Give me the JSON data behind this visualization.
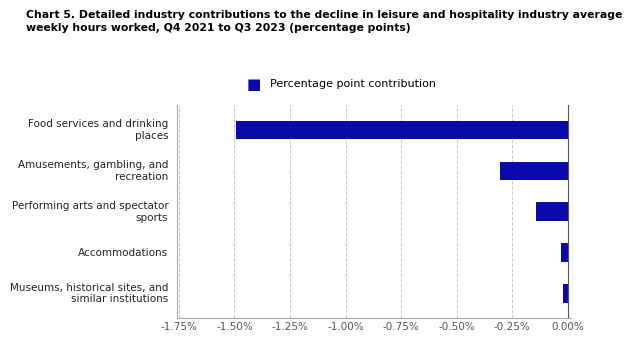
{
  "title": "Chart 5. Detailed industry contributions to the decline in leisure and hospitality industry average\nweekly hours worked, Q4 2021 to Q3 2023 (percentage points)",
  "legend_label": "Percentage point contribution",
  "categories": [
    "Museums, historical sites, and\nsimilar institutions",
    "Accommodations",
    "Performing arts and spectator\nsports",
    "Amusements, gambling, and\nrecreation",
    "Food services and drinking\nplaces"
  ],
  "values": [
    -0.02,
    -0.03,
    -0.145,
    -0.305,
    -1.495
  ],
  "bar_color": "#0a0aaa",
  "legend_color": "#0a0aaa",
  "xlim": [
    -1.75,
    0.0
  ],
  "xticks": [
    -1.75,
    -1.5,
    -1.25,
    -1.0,
    -0.75,
    -0.5,
    -0.25,
    0.0
  ],
  "xtick_labels": [
    "-1.75%",
    "-1.50%",
    "-1.25%",
    "-1.00%",
    "-0.75%",
    "-0.50%",
    "-0.25%",
    "0.00%"
  ],
  "background_color": "#ffffff",
  "grid_color": "#c8c8c8",
  "bar_height": 0.45
}
